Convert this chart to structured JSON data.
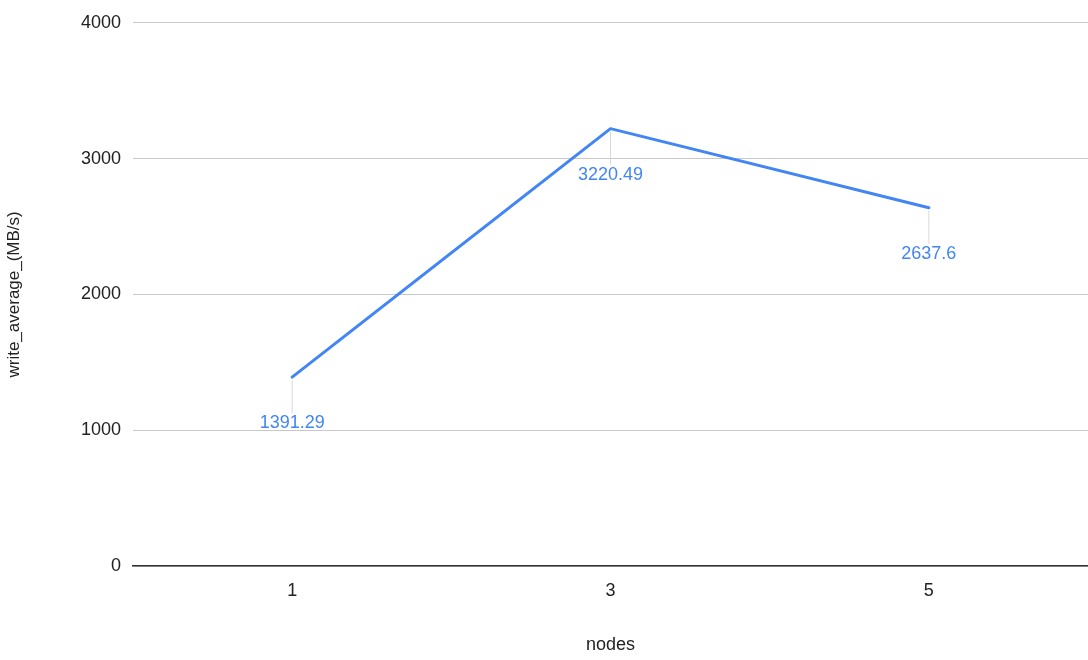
{
  "chart_data": {
    "type": "line",
    "xlabel": "nodes",
    "ylabel": "write_average_(MB/s)",
    "categories": [
      "1",
      "3",
      "5"
    ],
    "series": [
      {
        "color": "#4285f4",
        "values": [
          1391.29,
          3220.49,
          2637.6
        ]
      }
    ],
    "ylim": [
      0,
      4000
    ],
    "yticks": [
      0,
      1000,
      2000,
      3000,
      4000
    ],
    "grid": "y",
    "legend": false,
    "marker": "none",
    "line_style": "solid",
    "data_labels": true
  }
}
